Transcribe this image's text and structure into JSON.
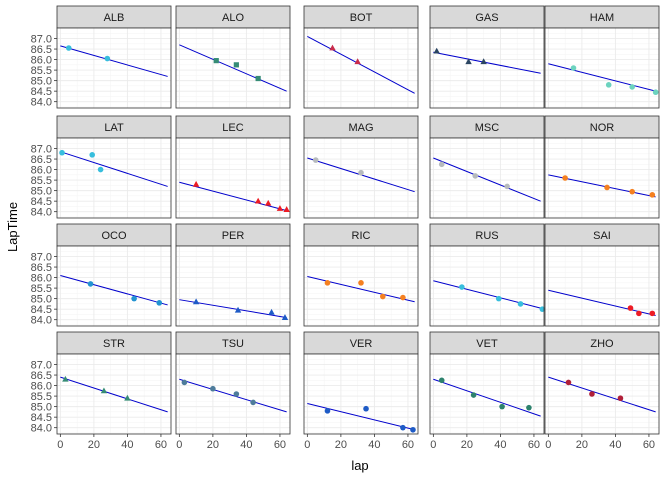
{
  "chart_data": {
    "type": "scatter",
    "xlabel": "lap",
    "ylabel": "LapTime",
    "xlim": [
      -2,
      66
    ],
    "ylim": [
      83.7,
      87.5
    ],
    "x_ticks": [
      0,
      20,
      40,
      60
    ],
    "y_ticks": [
      84.0,
      84.5,
      85.0,
      85.5,
      86.0,
      86.5,
      87.0
    ],
    "x_tick_labels": [
      "0",
      "20",
      "40",
      "60"
    ],
    "y_tick_labels": [
      "84.0",
      "84.5",
      "85.0",
      "85.5",
      "86.0",
      "86.5",
      "87.0"
    ],
    "grid": true,
    "facet_layout": {
      "columns": 5,
      "rows": 4
    },
    "panels": [
      {
        "label": "ALB",
        "color": "#37bedd",
        "marker": "circle",
        "points": [
          {
            "x": 5,
            "y": 86.55
          },
          {
            "x": 28,
            "y": 86.05
          }
        ],
        "trend": [
          {
            "x": 0,
            "y": 86.65
          },
          {
            "x": 64,
            "y": 85.2
          }
        ]
      },
      {
        "label": "ALO",
        "color": "#358c75",
        "marker": "square",
        "points": [
          {
            "x": 22,
            "y": 85.95
          },
          {
            "x": 34,
            "y": 85.75
          },
          {
            "x": 47,
            "y": 85.1
          }
        ],
        "trend": [
          {
            "x": 0,
            "y": 86.7
          },
          {
            "x": 64,
            "y": 84.5
          }
        ]
      },
      {
        "label": "BOT",
        "color": "#c92d4b",
        "marker": "triangle",
        "points": [
          {
            "x": 15,
            "y": 86.55
          },
          {
            "x": 30,
            "y": 85.9
          }
        ],
        "trend": [
          {
            "x": 0,
            "y": 87.1
          },
          {
            "x": 64,
            "y": 84.4
          }
        ]
      },
      {
        "label": "GAS",
        "color": "#2b4562",
        "marker": "triangle",
        "points": [
          {
            "x": 2,
            "y": 86.4
          },
          {
            "x": 21,
            "y": 85.9
          },
          {
            "x": 30,
            "y": 85.9
          }
        ],
        "trend": [
          {
            "x": 0,
            "y": 86.35
          },
          {
            "x": 64,
            "y": 85.35
          }
        ]
      },
      {
        "label": "HAM",
        "color": "#6cd3bf",
        "marker": "circle",
        "points": [
          {
            "x": 15,
            "y": 85.6
          },
          {
            "x": 36,
            "y": 84.8
          },
          {
            "x": 50,
            "y": 84.7
          },
          {
            "x": 64,
            "y": 84.45
          }
        ],
        "trend": [
          {
            "x": 0,
            "y": 85.8
          },
          {
            "x": 64,
            "y": 84.5
          }
        ]
      },
      {
        "label": "LAT",
        "color": "#37bedd",
        "marker": "circle",
        "points": [
          {
            "x": 1,
            "y": 86.8
          },
          {
            "x": 19,
            "y": 86.7
          },
          {
            "x": 24,
            "y": 86.0
          }
        ],
        "trend": [
          {
            "x": 0,
            "y": 86.85
          },
          {
            "x": 64,
            "y": 85.2
          }
        ]
      },
      {
        "label": "LEC",
        "color": "#ed1c24",
        "marker": "triangle",
        "points": [
          {
            "x": 10,
            "y": 85.3
          },
          {
            "x": 47,
            "y": 84.5
          },
          {
            "x": 53,
            "y": 84.4
          },
          {
            "x": 60,
            "y": 84.15
          },
          {
            "x": 64,
            "y": 84.1
          }
        ],
        "trend": [
          {
            "x": 0,
            "y": 85.4
          },
          {
            "x": 64,
            "y": 84.05
          }
        ]
      },
      {
        "label": "MAG",
        "color": "#b6babd",
        "marker": "circle",
        "points": [
          {
            "x": 5,
            "y": 86.45
          },
          {
            "x": 32,
            "y": 85.85
          }
        ],
        "trend": [
          {
            "x": 0,
            "y": 86.55
          },
          {
            "x": 64,
            "y": 84.95
          }
        ]
      },
      {
        "label": "MSC",
        "color": "#b6babd",
        "marker": "circle",
        "points": [
          {
            "x": 5,
            "y": 86.25
          },
          {
            "x": 25,
            "y": 85.7
          },
          {
            "x": 44,
            "y": 85.2
          }
        ],
        "trend": [
          {
            "x": 0,
            "y": 86.55
          },
          {
            "x": 64,
            "y": 84.5
          }
        ]
      },
      {
        "label": "NOR",
        "color": "#f58020",
        "marker": "circle",
        "points": [
          {
            "x": 10,
            "y": 85.6
          },
          {
            "x": 35,
            "y": 85.15
          },
          {
            "x": 50,
            "y": 84.95
          },
          {
            "x": 62,
            "y": 84.8
          }
        ],
        "trend": [
          {
            "x": 0,
            "y": 85.75
          },
          {
            "x": 64,
            "y": 84.7
          }
        ]
      },
      {
        "label": "OCO",
        "color": "#2293d1",
        "marker": "circle",
        "points": [
          {
            "x": 18,
            "y": 85.7
          },
          {
            "x": 44,
            "y": 85.0
          },
          {
            "x": 59,
            "y": 84.8
          }
        ],
        "trend": [
          {
            "x": 0,
            "y": 86.1
          },
          {
            "x": 64,
            "y": 84.7
          }
        ]
      },
      {
        "label": "PER",
        "color": "#1e5bc6",
        "marker": "triangle",
        "points": [
          {
            "x": 10,
            "y": 84.85
          },
          {
            "x": 35,
            "y": 84.45
          },
          {
            "x": 55,
            "y": 84.35
          },
          {
            "x": 63,
            "y": 84.1
          }
        ],
        "trend": [
          {
            "x": 0,
            "y": 84.95
          },
          {
            "x": 64,
            "y": 84.1
          }
        ]
      },
      {
        "label": "RIC",
        "color": "#f58020",
        "marker": "circle",
        "points": [
          {
            "x": 12,
            "y": 85.75
          },
          {
            "x": 32,
            "y": 85.75
          },
          {
            "x": 45,
            "y": 85.1
          },
          {
            "x": 57,
            "y": 85.05
          }
        ],
        "trend": [
          {
            "x": 0,
            "y": 86.05
          },
          {
            "x": 64,
            "y": 84.85
          }
        ]
      },
      {
        "label": "RUS",
        "color": "#37bedd",
        "marker": "circle",
        "points": [
          {
            "x": 17,
            "y": 85.55
          },
          {
            "x": 39,
            "y": 85.0
          },
          {
            "x": 52,
            "y": 84.75
          },
          {
            "x": 65,
            "y": 84.5
          }
        ],
        "trend": [
          {
            "x": 0,
            "y": 85.85
          },
          {
            "x": 64,
            "y": 84.55
          }
        ]
      },
      {
        "label": "SAI",
        "color": "#ed1c24",
        "marker": "circle",
        "points": [
          {
            "x": 49,
            "y": 84.55
          },
          {
            "x": 54,
            "y": 84.3
          },
          {
            "x": 62,
            "y": 84.3
          }
        ],
        "trend": [
          {
            "x": 0,
            "y": 85.4
          },
          {
            "x": 64,
            "y": 84.2
          }
        ]
      },
      {
        "label": "STR",
        "color": "#358c75",
        "marker": "triangle",
        "points": [
          {
            "x": 3,
            "y": 86.3
          },
          {
            "x": 26,
            "y": 85.75
          },
          {
            "x": 40,
            "y": 85.4
          }
        ],
        "trend": [
          {
            "x": 0,
            "y": 86.4
          },
          {
            "x": 64,
            "y": 84.75
          }
        ]
      },
      {
        "label": "TSU",
        "color": "#4e7c9b",
        "marker": "circle",
        "points": [
          {
            "x": 3,
            "y": 86.15
          },
          {
            "x": 20,
            "y": 85.85
          },
          {
            "x": 34,
            "y": 85.6
          },
          {
            "x": 44,
            "y": 85.2
          }
        ],
        "trend": [
          {
            "x": 0,
            "y": 86.3
          },
          {
            "x": 64,
            "y": 84.75
          }
        ]
      },
      {
        "label": "VER",
        "color": "#1e5bc6",
        "marker": "circle",
        "points": [
          {
            "x": 12,
            "y": 84.8
          },
          {
            "x": 35,
            "y": 84.9
          },
          {
            "x": 57,
            "y": 84.0
          },
          {
            "x": 63,
            "y": 83.9
          }
        ],
        "trend": [
          {
            "x": 0,
            "y": 85.15
          },
          {
            "x": 64,
            "y": 83.9
          }
        ]
      },
      {
        "label": "VET",
        "color": "#2d826d",
        "marker": "circle",
        "points": [
          {
            "x": 5,
            "y": 86.25
          },
          {
            "x": 24,
            "y": 85.55
          },
          {
            "x": 41,
            "y": 85.0
          },
          {
            "x": 57,
            "y": 84.95
          }
        ],
        "trend": [
          {
            "x": 0,
            "y": 86.3
          },
          {
            "x": 64,
            "y": 84.55
          }
        ]
      },
      {
        "label": "ZHO",
        "color": "#b12039",
        "marker": "circle",
        "points": [
          {
            "x": 12,
            "y": 86.15
          },
          {
            "x": 26,
            "y": 85.6
          },
          {
            "x": 43,
            "y": 85.4
          }
        ],
        "trend": [
          {
            "x": 0,
            "y": 86.4
          },
          {
            "x": 64,
            "y": 84.75
          }
        ]
      }
    ]
  }
}
